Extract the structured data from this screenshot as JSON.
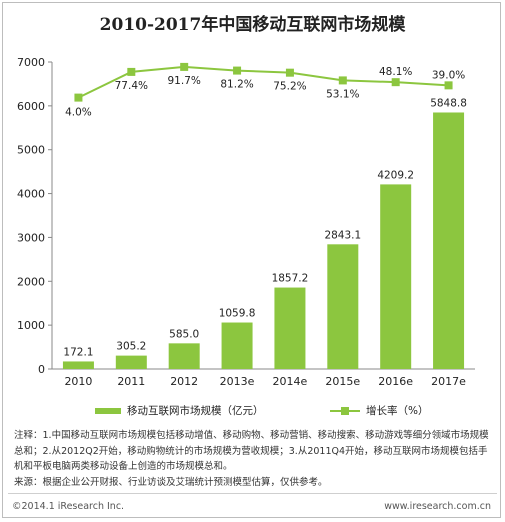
{
  "chart_data": {
    "type": "bar",
    "title": "2010-2017年中国移动互联网市场规模",
    "categories": [
      "2010",
      "2011",
      "2012",
      "2013e",
      "2014e",
      "2015e",
      "2016e",
      "2017e"
    ],
    "series": [
      {
        "name": "移动互联网市场规模（亿元）",
        "type": "bar",
        "values": [
          172.1,
          305.2,
          585.0,
          1059.8,
          1857.2,
          2843.1,
          4209.2,
          5848.8
        ],
        "labels": [
          "172.1",
          "305.2",
          "585.0",
          "1059.8",
          "1857.2",
          "2843.1",
          "4209.2",
          "5848.8"
        ]
      },
      {
        "name": "增长率（%）",
        "type": "line",
        "values": [
          4.0,
          77.4,
          91.7,
          81.2,
          75.2,
          53.1,
          48.1,
          39.0
        ],
        "labels": [
          "4.0%",
          "77.4%",
          "91.7%",
          "81.2%",
          "75.2%",
          "53.1%",
          "48.1%",
          "39.0%"
        ]
      }
    ],
    "ylim": [
      0,
      7000
    ],
    "yticks": [
      0,
      1000,
      2000,
      3000,
      4000,
      5000,
      6000,
      7000
    ],
    "grid": false,
    "legend": "bottom",
    "color": "#8cc63f"
  },
  "notes": [
    "注释：1.中国移动互联网市场规模包括移动增值、移动购物、移动营销、移动搜索、移动游戏等细分领域市场规模总和；2.从2012Q2开始，移动购物统计的市场规模为营收规模；3.从2011Q4开始，移动互联网市场规模包括手机和平板电脑两类移动设备上创造的市场规模总和。",
    "来源：根据企业公开财报、行业访谈及艾瑞统计预测模型估算，仅供参考。"
  ],
  "footer": {
    "copyright": "©2014.1 iResearch Inc.",
    "website": "www.iresearch.com.cn"
  }
}
